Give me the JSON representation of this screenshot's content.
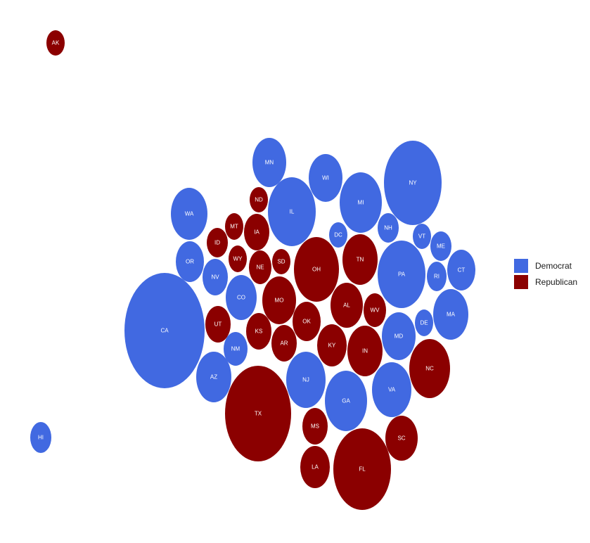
{
  "chart_data": {
    "type": "bubble-cartogram",
    "legend_position": "right",
    "legend": [
      {
        "party": "Democrat",
        "color": "#4169e1"
      },
      {
        "party": "Republican",
        "color": "#8b0000"
      }
    ],
    "states": [
      {
        "abbr": "AK",
        "party": "Republican",
        "electoral_votes": 3
      },
      {
        "abbr": "HI",
        "party": "Democrat",
        "electoral_votes": 4
      },
      {
        "abbr": "CA",
        "party": "Democrat",
        "electoral_votes": 55
      },
      {
        "abbr": "TX",
        "party": "Republican",
        "electoral_votes": 38
      },
      {
        "abbr": "FL",
        "party": "Republican",
        "electoral_votes": 29
      },
      {
        "abbr": "NY",
        "party": "Democrat",
        "electoral_votes": 29
      },
      {
        "abbr": "IL",
        "party": "Democrat",
        "electoral_votes": 20
      },
      {
        "abbr": "PA",
        "party": "Democrat",
        "electoral_votes": 20
      },
      {
        "abbr": "OH",
        "party": "Republican",
        "electoral_votes": 18
      },
      {
        "abbr": "MI",
        "party": "Democrat",
        "electoral_votes": 16
      },
      {
        "abbr": "GA",
        "party": "Democrat",
        "electoral_votes": 16
      },
      {
        "abbr": "NC",
        "party": "Republican",
        "electoral_votes": 15
      },
      {
        "abbr": "NJ",
        "party": "Democrat",
        "electoral_votes": 14
      },
      {
        "abbr": "VA",
        "party": "Democrat",
        "electoral_votes": 13
      },
      {
        "abbr": "WA",
        "party": "Democrat",
        "electoral_votes": 12
      },
      {
        "abbr": "AZ",
        "party": "Democrat",
        "electoral_votes": 11
      },
      {
        "abbr": "MA",
        "party": "Democrat",
        "electoral_votes": 11
      },
      {
        "abbr": "IN",
        "party": "Republican",
        "electoral_votes": 11
      },
      {
        "abbr": "TN",
        "party": "Republican",
        "electoral_votes": 11
      },
      {
        "abbr": "MN",
        "party": "Democrat",
        "electoral_votes": 10
      },
      {
        "abbr": "WI",
        "party": "Democrat",
        "electoral_votes": 10
      },
      {
        "abbr": "MD",
        "party": "Democrat",
        "electoral_votes": 10
      },
      {
        "abbr": "MO",
        "party": "Republican",
        "electoral_votes": 10
      },
      {
        "abbr": "CO",
        "party": "Democrat",
        "electoral_votes": 9
      },
      {
        "abbr": "AL",
        "party": "Republican",
        "electoral_votes": 9
      },
      {
        "abbr": "SC",
        "party": "Republican",
        "electoral_votes": 9
      },
      {
        "abbr": "LA",
        "party": "Republican",
        "electoral_votes": 8
      },
      {
        "abbr": "KY",
        "party": "Republican",
        "electoral_votes": 8
      },
      {
        "abbr": "OR",
        "party": "Democrat",
        "electoral_votes": 7
      },
      {
        "abbr": "CT",
        "party": "Democrat",
        "electoral_votes": 7
      },
      {
        "abbr": "OK",
        "party": "Republican",
        "electoral_votes": 7
      },
      {
        "abbr": "NV",
        "party": "Democrat",
        "electoral_votes": 6
      },
      {
        "abbr": "UT",
        "party": "Republican",
        "electoral_votes": 6
      },
      {
        "abbr": "IA",
        "party": "Republican",
        "electoral_votes": 6
      },
      {
        "abbr": "KS",
        "party": "Republican",
        "electoral_votes": 6
      },
      {
        "abbr": "AR",
        "party": "Republican",
        "electoral_votes": 6
      },
      {
        "abbr": "MS",
        "party": "Republican",
        "electoral_votes": 6
      },
      {
        "abbr": "NM",
        "party": "Democrat",
        "electoral_votes": 5
      },
      {
        "abbr": "NE",
        "party": "Republican",
        "electoral_votes": 5
      },
      {
        "abbr": "WV",
        "party": "Republican",
        "electoral_votes": 5
      },
      {
        "abbr": "ID",
        "party": "Republican",
        "electoral_votes": 4
      },
      {
        "abbr": "NH",
        "party": "Democrat",
        "electoral_votes": 4
      },
      {
        "abbr": "ME",
        "party": "Democrat",
        "electoral_votes": 4
      },
      {
        "abbr": "RI",
        "party": "Democrat",
        "electoral_votes": 4
      },
      {
        "abbr": "MT",
        "party": "Republican",
        "electoral_votes": 3
      },
      {
        "abbr": "ND",
        "party": "Republican",
        "electoral_votes": 3
      },
      {
        "abbr": "SD",
        "party": "Republican",
        "electoral_votes": 3
      },
      {
        "abbr": "WY",
        "party": "Republican",
        "electoral_votes": 3
      },
      {
        "abbr": "DE",
        "party": "Democrat",
        "electoral_votes": 3
      },
      {
        "abbr": "VT",
        "party": "Democrat",
        "electoral_votes": 3
      },
      {
        "abbr": "DC",
        "party": "Democrat",
        "electoral_votes": 3
      }
    ]
  }
}
